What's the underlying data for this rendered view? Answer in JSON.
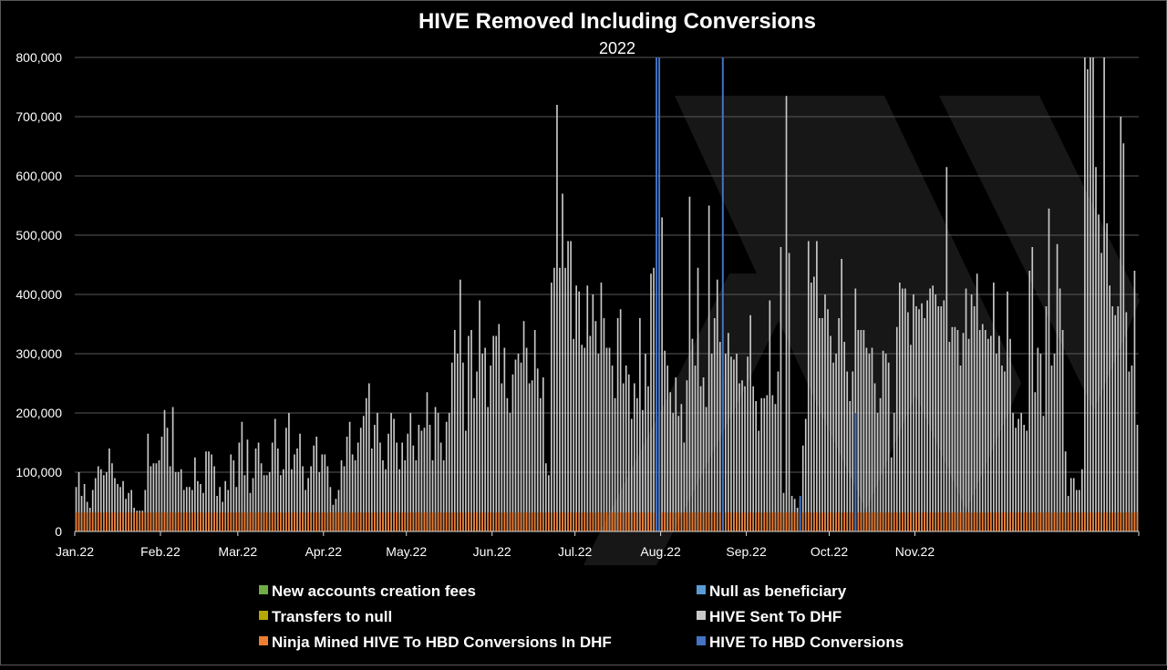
{
  "chart_data": {
    "type": "bar",
    "stacked": true,
    "title": "HIVE Removed Including Conversions",
    "subtitle": "2022",
    "xlabel": "",
    "ylabel": "",
    "ylim": [
      0,
      800000
    ],
    "y_ticks": [
      "0",
      "100,000",
      "200,000",
      "300,000",
      "400,000",
      "500,000",
      "600,000",
      "700,000",
      "800,000"
    ],
    "x_ticks": [
      "Jan.22",
      "Feb.22",
      "Mar.22",
      "Apr.22",
      "May.22",
      "Jun.22",
      "Jul.22",
      "Aug.22",
      "Sep.22",
      "Oct.22",
      "Nov.22"
    ],
    "grid": "horizontal",
    "legend_position": "bottom",
    "x_start": "2022-01-01",
    "series": [
      {
        "name": "New accounts creation fees",
        "color": "#70ad47"
      },
      {
        "name": "Null as beneficiary",
        "color": "#5b9bd5"
      },
      {
        "name": "Transfers to null",
        "color": "#b5a800"
      },
      {
        "name": "HIVE Sent To DHF",
        "color": "#c8c8c8"
      },
      {
        "name": "Ninja Mined HIVE To HBD Conversions In DHF",
        "color": "#ed7d31"
      },
      {
        "name": "HIVE To HBD Conversions",
        "color": "#4472c4"
      }
    ],
    "dhf_values": [
      75000,
      100000,
      60000,
      80000,
      50000,
      40000,
      70000,
      90000,
      110000,
      105000,
      95000,
      100000,
      140000,
      115000,
      90000,
      80000,
      75000,
      85000,
      55000,
      65000,
      70000,
      40000,
      35000,
      35000,
      35000,
      70000,
      165000,
      110000,
      115000,
      115000,
      120000,
      160000,
      205000,
      175000,
      110000,
      210000,
      100000,
      100000,
      105000,
      70000,
      75000,
      75000,
      70000,
      125000,
      85000,
      80000,
      65000,
      135000,
      135000,
      130000,
      110000,
      60000,
      75000,
      50000,
      85000,
      70000,
      130000,
      120000,
      75000,
      150000,
      185000,
      95000,
      155000,
      65000,
      90000,
      140000,
      150000,
      115000,
      95000,
      95000,
      100000,
      150000,
      190000,
      140000,
      95000,
      105000,
      175000,
      200000,
      105000,
      130000,
      140000,
      165000,
      110000,
      70000,
      90000,
      110000,
      145000,
      160000,
      100000,
      130000,
      130000,
      110000,
      75000,
      45000,
      55000,
      70000,
      120000,
      110000,
      160000,
      185000,
      130000,
      120000,
      150000,
      175000,
      195000,
      225000,
      250000,
      140000,
      180000,
      200000,
      150000,
      120000,
      105000,
      165000,
      200000,
      190000,
      150000,
      105000,
      150000,
      120000,
      165000,
      200000,
      145000,
      120000,
      180000,
      170000,
      175000,
      235000,
      180000,
      120000,
      210000,
      200000,
      150000,
      120000,
      185000,
      200000,
      285000,
      340000,
      300000,
      425000,
      285000,
      170000,
      330000,
      340000,
      225000,
      270000,
      390000,
      300000,
      310000,
      210000,
      280000,
      330000,
      330000,
      350000,
      250000,
      310000,
      225000,
      200000,
      265000,
      290000,
      300000,
      285000,
      355000,
      310000,
      250000,
      255000,
      340000,
      275000,
      225000,
      260000,
      115000,
      95000,
      420000,
      445000,
      720000,
      445000,
      570000,
      445000,
      490000,
      490000,
      325000,
      415000,
      405000,
      315000,
      310000,
      415000,
      330000,
      400000,
      355000,
      300000,
      420000,
      360000,
      310000,
      310000,
      280000,
      225000,
      360000,
      375000,
      250000,
      280000,
      265000,
      190000,
      250000,
      225000,
      360000,
      205000,
      300000,
      245000,
      435000,
      445000,
      350000,
      300000,
      530000,
      305000,
      280000,
      235000,
      200000,
      260000,
      195000,
      215000,
      150000,
      255000,
      565000,
      325000,
      280000,
      445000,
      245000,
      260000,
      210000,
      550000,
      300000,
      360000,
      425000,
      320000,
      260000,
      300000,
      335000,
      295000,
      290000,
      300000,
      250000,
      255000,
      245000,
      295000,
      365000,
      245000,
      220000,
      170000,
      225000,
      225000,
      230000,
      390000,
      230000,
      215000,
      270000,
      480000,
      65000,
      735000,
      470000,
      60000,
      55000,
      40000,
      55000,
      145000,
      190000,
      490000,
      420000,
      430000,
      490000,
      360000,
      360000,
      400000,
      375000,
      330000,
      285000,
      300000,
      360000,
      460000,
      320000,
      270000,
      220000,
      270000,
      410000,
      340000,
      340000,
      340000,
      310000,
      300000,
      310000,
      250000,
      200000,
      225000,
      305000,
      300000,
      285000,
      125000,
      200000,
      345000,
      420000,
      410000,
      410000,
      370000,
      315000,
      400000,
      380000,
      375000,
      385000,
      360000,
      390000,
      410000,
      415000,
      400000,
      380000,
      380000,
      390000,
      615000,
      320000,
      345000,
      345000,
      340000,
      280000,
      335000,
      410000,
      325000,
      400000,
      380000,
      435000,
      340000,
      350000,
      340000,
      325000,
      330000,
      420000,
      300000,
      330000,
      280000,
      270000,
      405000,
      325000,
      200000,
      175000,
      190000,
      200000,
      180000,
      170000,
      440000,
      480000,
      235000,
      310000,
      300000,
      195000,
      380000,
      545000,
      280000,
      300000,
      485000,
      410000,
      340000,
      135000,
      60000,
      90000,
      90000,
      70000,
      70000,
      105000,
      800000,
      780000,
      800000,
      800000,
      615000,
      535000,
      470000,
      800000,
      520000,
      415000,
      380000,
      365000,
      380000,
      700000,
      655000,
      370000,
      270000,
      280000,
      440000,
      180000
    ]
  },
  "axis_label_color": "#ffffff"
}
